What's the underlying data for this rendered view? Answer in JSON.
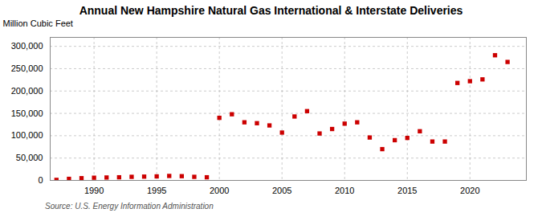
{
  "chart_data": {
    "type": "scatter",
    "title": "Annual New Hampshire Natural Gas International & Interstate Deliveries",
    "ylabel": "Million Cubic Feet",
    "source": "Source: U.S. Energy Information Administration",
    "x": [
      1987,
      1988,
      1989,
      1990,
      1991,
      1992,
      1993,
      1994,
      1995,
      1996,
      1997,
      1998,
      1999,
      2000,
      2001,
      2002,
      2003,
      2004,
      2005,
      2006,
      2007,
      2008,
      2009,
      2010,
      2011,
      2012,
      2013,
      2014,
      2015,
      2016,
      2017,
      2018,
      2019,
      2020,
      2021,
      2022,
      2023
    ],
    "values": [
      1200,
      3500,
      5000,
      6000,
      6500,
      7000,
      8000,
      8500,
      9000,
      10000,
      9500,
      8000,
      7000,
      140000,
      148000,
      130000,
      128000,
      123000,
      107000,
      143000,
      155000,
      105000,
      115000,
      127000,
      130000,
      96000,
      70000,
      90000,
      95000,
      110000,
      87000,
      87000,
      218000,
      222000,
      226000,
      280000,
      265000
    ],
    "color": "#cc0000",
    "marker": "square",
    "xlim": [
      1986.5,
      2024.5
    ],
    "xticks": [
      1990,
      1995,
      2000,
      2005,
      2010,
      2015,
      2020
    ],
    "ylim": [
      0,
      320000
    ],
    "yticks": [
      0,
      {
        "value": 50000,
        "label": "50,000"
      },
      {
        "value": 100000,
        "label": "100,000"
      },
      {
        "value": 150000,
        "label": "150,000"
      },
      {
        "value": 200000,
        "label": "200,000"
      },
      {
        "value": 250000,
        "label": "250,000"
      },
      {
        "value": 300000,
        "label": "300,000"
      }
    ],
    "grid": true
  }
}
